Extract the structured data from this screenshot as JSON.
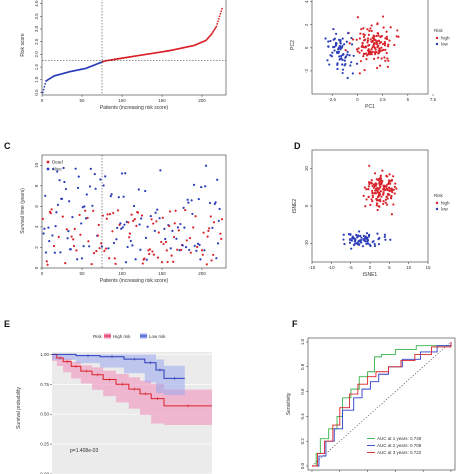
{
  "colors": {
    "high": "#d9232a",
    "low": "#2a3cb8",
    "km_high_band": "#f28bb8",
    "km_low_band": "#9aa8f0",
    "auc1": "#38b44a",
    "auc2": "#2b3fc9",
    "auc3": "#d9232a",
    "diag": "#555555"
  },
  "chart_data": [
    {
      "panel": "A",
      "type": "scatter",
      "xlabel": "Patients (increasing risk score)",
      "ylabel": "Risk score",
      "xlim": [
        0,
        230
      ],
      "ylim": [
        0.4,
        4.3
      ],
      "xticks": [
        0,
        50,
        100,
        150,
        200
      ],
      "yticks": [
        "0.5",
        "1.0",
        "1.5",
        "2.0",
        "2.5",
        "3.0",
        "3.5",
        "4.0"
      ],
      "ytick_values": [
        0.5,
        1.0,
        1.5,
        2.0,
        2.5,
        3.0,
        3.5,
        4.0
      ],
      "cutoff_x": 75,
      "cutoff_y": 1.75,
      "n": 225,
      "low_count": 75,
      "curve": [
        [
          1,
          0.5
        ],
        [
          5,
          0.95
        ],
        [
          15,
          1.15
        ],
        [
          35,
          1.32
        ],
        [
          55,
          1.45
        ],
        [
          75,
          1.7
        ],
        [
          80,
          1.75
        ],
        [
          100,
          1.85
        ],
        [
          130,
          2.0
        ],
        [
          160,
          2.15
        ],
        [
          190,
          2.35
        ],
        [
          205,
          2.55
        ],
        [
          212,
          2.8
        ],
        [
          218,
          3.1
        ],
        [
          221,
          3.4
        ],
        [
          225,
          3.8
        ]
      ]
    },
    {
      "panel": "B",
      "type": "scatter",
      "xlabel": "PC1",
      "ylabel": "PC2",
      "xlim": [
        -4.5,
        7
      ],
      "ylim": [
        -4,
        4.5
      ],
      "xticks": [
        "-2.5",
        "0",
        "2.5",
        "5",
        "7.5"
      ],
      "xtick_values": [
        -2.5,
        0,
        2.5,
        5,
        7.5
      ],
      "yticks": [
        -2,
        0,
        2,
        4
      ],
      "legend_title": "Risk",
      "legend": [
        "high",
        "low"
      ],
      "legend_position": "right"
    },
    {
      "panel": "C",
      "type": "scatter",
      "xlabel": "Patients (increasing risk score)",
      "ylabel": "Survival time (years)",
      "xlim": [
        0,
        230
      ],
      "ylim": [
        0,
        11
      ],
      "xticks": [
        0,
        50,
        100,
        150,
        200
      ],
      "yticks": [
        0,
        2,
        4,
        6,
        8,
        10
      ],
      "cutoff_x": 75,
      "legend": [
        "Dead",
        "Alive"
      ],
      "legend_position": "top-left"
    },
    {
      "panel": "D",
      "type": "scatter",
      "xlabel": "tSNE1",
      "ylabel": "tSNE2",
      "xlim": [
        -15,
        15
      ],
      "ylim": [
        -15,
        15
      ],
      "xticks": [
        -15,
        -10,
        -5,
        0,
        5,
        10,
        15
      ],
      "yticks": [
        -10,
        0,
        10
      ],
      "legend_title": "Risk",
      "legend": [
        "high",
        "low"
      ],
      "legend_position": "right"
    },
    {
      "panel": "E",
      "type": "line",
      "ylabel": "Survival probability",
      "xlim": [
        0,
        10
      ],
      "ylim": [
        0,
        1.0
      ],
      "yticks": [
        "0.00",
        "0.25",
        "0.50",
        "0.75",
        "1.00"
      ],
      "ytick_values": [
        0,
        0.25,
        0.5,
        0.75,
        1.0
      ],
      "legend_title": "Risk",
      "legend": [
        "High risk",
        "Low risk"
      ],
      "legend_position": "top",
      "pvalue": "p=1.408e-03",
      "series": [
        {
          "name": "High risk",
          "steps": [
            [
              0,
              1.0
            ],
            [
              0.3,
              0.97
            ],
            [
              0.7,
              0.94
            ],
            [
              1.2,
              0.9
            ],
            [
              1.8,
              0.86
            ],
            [
              2.5,
              0.83
            ],
            [
              3.2,
              0.79
            ],
            [
              4.0,
              0.75
            ],
            [
              4.8,
              0.71
            ],
            [
              5.5,
              0.67
            ],
            [
              6.2,
              0.63
            ],
            [
              7.0,
              0.57
            ],
            [
              10,
              0.57
            ]
          ]
        },
        {
          "name": "Low risk",
          "steps": [
            [
              0,
              1.0
            ],
            [
              1.5,
              0.99
            ],
            [
              3,
              0.98
            ],
            [
              4.5,
              0.96
            ],
            [
              5.8,
              0.93
            ],
            [
              6.5,
              0.87
            ],
            [
              7.0,
              0.8
            ],
            [
              8.3,
              0.8
            ]
          ]
        }
      ]
    },
    {
      "panel": "F",
      "type": "line",
      "ylabel": "Sensitivity",
      "xlim": [
        0,
        1
      ],
      "ylim": [
        0,
        1
      ],
      "yticks": [
        "0.0",
        "0.2",
        "0.4",
        "0.6",
        "0.8",
        "1.0"
      ],
      "ytick_values": [
        0,
        0.2,
        0.4,
        0.6,
        0.8,
        1.0
      ],
      "legend_position": "bottom-right",
      "series": [
        {
          "name": "AUC at 1 years: 0.749",
          "points": [
            [
              0,
              0
            ],
            [
              0.03,
              0.1
            ],
            [
              0.06,
              0.22
            ],
            [
              0.12,
              0.3
            ],
            [
              0.18,
              0.4
            ],
            [
              0.22,
              0.55
            ],
            [
              0.28,
              0.62
            ],
            [
              0.34,
              0.72
            ],
            [
              0.4,
              0.76
            ],
            [
              0.45,
              0.88
            ],
            [
              0.5,
              0.9
            ],
            [
              0.6,
              0.94
            ],
            [
              0.75,
              0.97
            ],
            [
              1,
              1
            ]
          ]
        },
        {
          "name": "AUC at 2 years: 0.708",
          "points": [
            [
              0,
              0
            ],
            [
              0.05,
              0.08
            ],
            [
              0.1,
              0.2
            ],
            [
              0.16,
              0.3
            ],
            [
              0.22,
              0.45
            ],
            [
              0.3,
              0.55
            ],
            [
              0.36,
              0.62
            ],
            [
              0.42,
              0.68
            ],
            [
              0.48,
              0.74
            ],
            [
              0.55,
              0.8
            ],
            [
              0.65,
              0.86
            ],
            [
              0.78,
              0.92
            ],
            [
              0.9,
              0.97
            ],
            [
              1,
              1
            ]
          ]
        },
        {
          "name": "AUC at 3 years: 0.722",
          "points": [
            [
              0,
              0
            ],
            [
              0.04,
              0.1
            ],
            [
              0.09,
              0.2
            ],
            [
              0.15,
              0.33
            ],
            [
              0.2,
              0.47
            ],
            [
              0.27,
              0.58
            ],
            [
              0.33,
              0.66
            ],
            [
              0.4,
              0.72
            ],
            [
              0.46,
              0.76
            ],
            [
              0.55,
              0.8
            ],
            [
              0.64,
              0.85
            ],
            [
              0.74,
              0.9
            ],
            [
              0.86,
              0.96
            ],
            [
              1,
              1
            ]
          ]
        }
      ]
    }
  ]
}
